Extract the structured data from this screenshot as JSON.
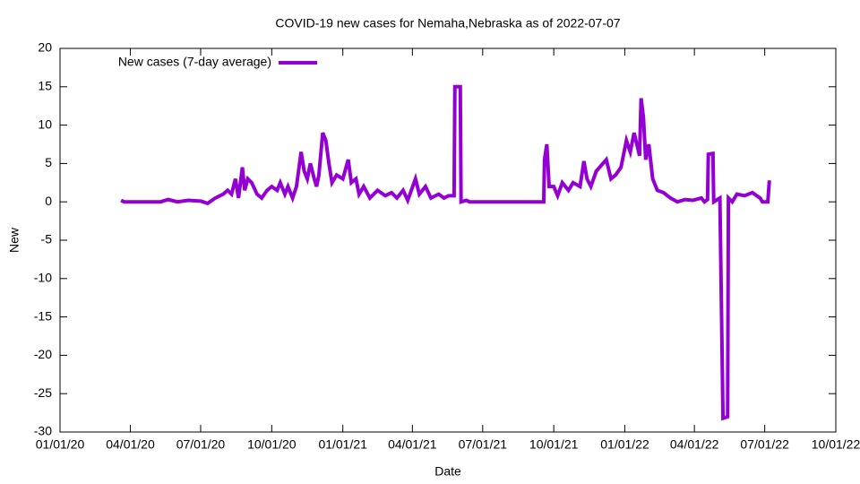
{
  "chart_data": {
    "type": "line",
    "title": "COVID-19 new cases for Nemaha,Nebraska as of 2022-07-07",
    "x_label": "Date",
    "y_label": "New",
    "legend": "top-left",
    "xlim": [
      "2020-01-01",
      "2022-10-01"
    ],
    "xticks": [
      {
        "value": "2020-01-01",
        "label": "01/01/20"
      },
      {
        "value": "2020-04-01",
        "label": "04/01/20"
      },
      {
        "value": "2020-07-01",
        "label": "07/01/20"
      },
      {
        "value": "2020-10-01",
        "label": "10/01/20"
      },
      {
        "value": "2021-01-01",
        "label": "01/01/21"
      },
      {
        "value": "2021-04-01",
        "label": "04/01/21"
      },
      {
        "value": "2021-07-01",
        "label": "07/01/21"
      },
      {
        "value": "2021-10-01",
        "label": "10/01/21"
      },
      {
        "value": "2022-01-01",
        "label": "01/01/22"
      },
      {
        "value": "2022-04-01",
        "label": "04/01/22"
      },
      {
        "value": "2022-07-01",
        "label": "07/01/22"
      },
      {
        "value": "2022-10-01",
        "label": "10/01/22"
      }
    ],
    "ylim": [
      -30,
      20
    ],
    "yticks": [
      -30,
      -25,
      -20,
      -15,
      -10,
      -5,
      0,
      5,
      10,
      15,
      20
    ],
    "x": [
      "2020-03-20",
      "2020-03-24",
      "2020-05-10",
      "2020-05-20",
      "2020-06-01",
      "2020-06-15",
      "2020-07-01",
      "2020-07-10",
      "2020-07-20",
      "2020-07-30",
      "2020-08-05",
      "2020-08-10",
      "2020-08-15",
      "2020-08-19",
      "2020-08-24",
      "2020-08-27",
      "2020-08-31",
      "2020-09-05",
      "2020-09-12",
      "2020-09-18",
      "2020-09-25",
      "2020-10-01",
      "2020-10-08",
      "2020-10-12",
      "2020-10-18",
      "2020-10-22",
      "2020-10-28",
      "2020-11-02",
      "2020-11-08",
      "2020-11-12",
      "2020-11-16",
      "2020-11-20",
      "2020-11-25",
      "2020-11-28",
      "2020-12-01",
      "2020-12-06",
      "2020-12-10",
      "2020-12-14",
      "2020-12-18",
      "2020-12-24",
      "2021-01-01",
      "2021-01-08",
      "2021-01-12",
      "2021-01-18",
      "2021-01-22",
      "2021-01-28",
      "2021-02-05",
      "2021-02-15",
      "2021-02-25",
      "2021-03-05",
      "2021-03-12",
      "2021-03-20",
      "2021-03-26",
      "2021-04-05",
      "2021-04-10",
      "2021-04-18",
      "2021-04-25",
      "2021-05-05",
      "2021-05-12",
      "2021-05-18",
      "2021-05-25",
      "2021-05-26",
      "2021-06-02",
      "2021-06-03",
      "2021-06-10",
      "2021-06-14",
      "2021-09-18",
      "2021-09-19",
      "2021-09-22",
      "2021-09-25",
      "2021-10-01",
      "2021-10-06",
      "2021-10-12",
      "2021-10-20",
      "2021-10-26",
      "2021-11-04",
      "2021-11-09",
      "2021-11-13",
      "2021-11-18",
      "2021-11-25",
      "2021-12-08",
      "2021-12-14",
      "2021-12-20",
      "2021-12-27",
      "2022-01-03",
      "2022-01-08",
      "2022-01-13",
      "2022-01-20",
      "2022-01-22",
      "2022-01-25",
      "2022-01-28",
      "2022-02-01",
      "2022-02-06",
      "2022-02-12",
      "2022-02-20",
      "2022-03-01",
      "2022-03-10",
      "2022-03-20",
      "2022-03-30",
      "2022-04-10",
      "2022-04-14",
      "2022-04-18",
      "2022-04-19",
      "2022-04-25",
      "2022-04-26",
      "2022-05-04",
      "2022-05-08",
      "2022-05-14",
      "2022-05-15",
      "2022-05-20",
      "2022-05-26",
      "2022-06-05",
      "2022-06-15",
      "2022-06-25",
      "2022-06-28",
      "2022-07-05",
      "2022-07-07"
    ],
    "series": [
      {
        "name": "New cases (7-day average)",
        "color": "#9400d3",
        "values": [
          0.2,
          0,
          0,
          0.3,
          0,
          0.2,
          0.1,
          -0.2,
          0.5,
          1,
          1.5,
          1,
          3,
          0.5,
          4.5,
          1.5,
          3,
          2.5,
          1,
          0.5,
          1.5,
          2,
          1.5,
          2.5,
          1,
          2,
          0.5,
          2,
          6.5,
          4,
          3,
          5,
          3,
          2,
          3.5,
          9,
          8,
          5,
          2.5,
          3.5,
          3,
          5.5,
          2.5,
          3,
          1,
          2,
          0.5,
          1.5,
          0.8,
          1.2,
          0.5,
          1.5,
          0.2,
          3,
          1,
          2,
          0.5,
          1,
          0.5,
          0.8,
          0.8,
          15,
          15,
          0,
          0.2,
          0,
          0,
          5.5,
          7.5,
          2,
          2,
          0.8,
          2.5,
          1.5,
          2.5,
          2,
          5.3,
          3,
          2,
          4,
          5.5,
          3,
          3.5,
          4.5,
          8,
          6.5,
          9,
          6,
          13.5,
          11,
          5.5,
          7.5,
          3,
          1.5,
          1.2,
          0.5,
          0,
          0.3,
          0.2,
          0.5,
          0,
          0.3,
          6.2,
          6.3,
          0,
          0.5,
          -28.2,
          -28,
          0.5,
          0,
          1,
          0.8,
          1.2,
          0.5,
          0,
          0,
          2.8
        ]
      }
    ]
  }
}
